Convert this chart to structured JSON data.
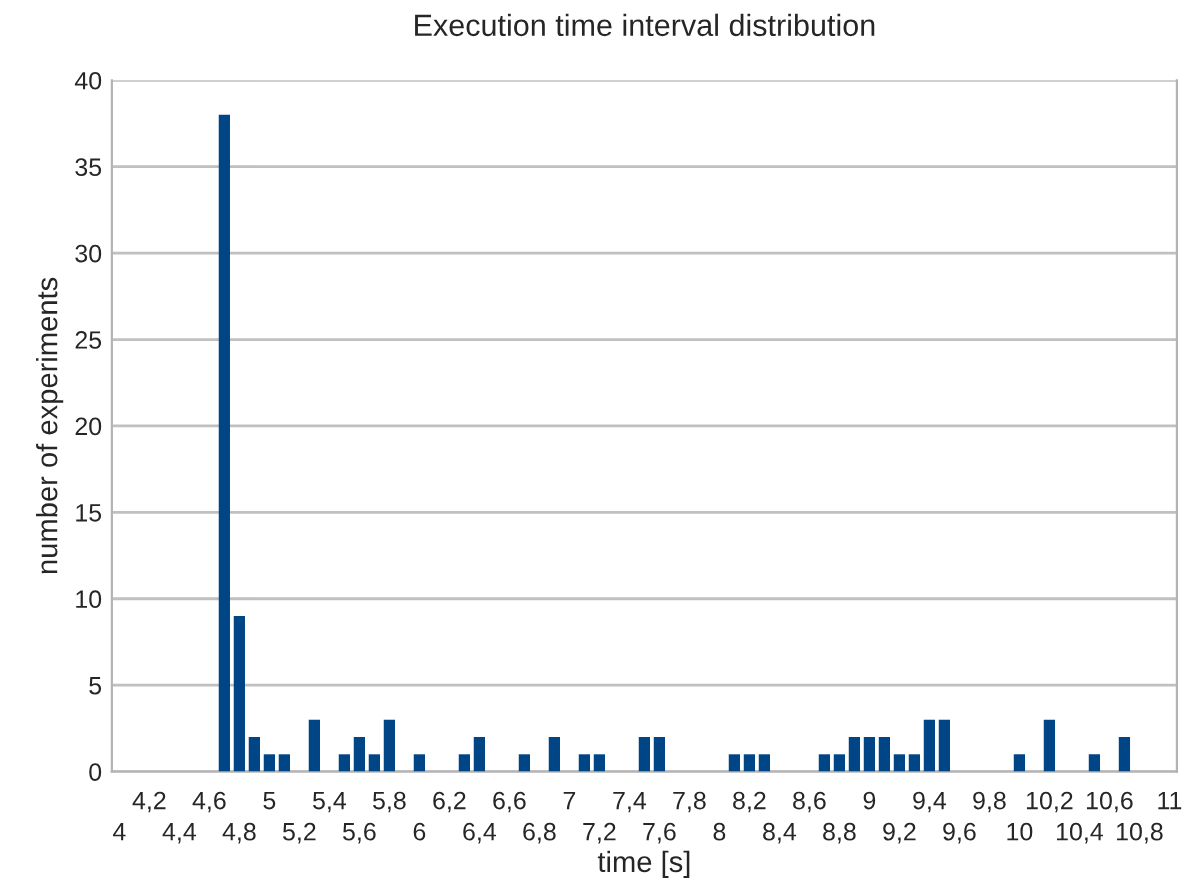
{
  "chart_data": {
    "type": "bar",
    "title": "Execution time interval distribution",
    "xlabel": "time [s]",
    "ylabel": "number of experiments",
    "categories": [
      "4",
      null,
      "4,2",
      null,
      "4,4",
      null,
      "4,6",
      null,
      "4,8",
      null,
      "5",
      null,
      "5,2",
      null,
      "5,4",
      null,
      "5,6",
      null,
      "5,8",
      null,
      "6",
      null,
      "6,2",
      null,
      "6,4",
      null,
      "6,6",
      null,
      "6,8",
      null,
      "7",
      null,
      "7,2",
      null,
      "7,4",
      null,
      "7,6",
      null,
      "7,8",
      null,
      "8",
      null,
      "8,2",
      null,
      "8,4",
      null,
      "8,6",
      null,
      "8,8",
      null,
      "9",
      null,
      "9,2",
      null,
      "9,4",
      null,
      "9,6",
      null,
      "9,8",
      null,
      "10",
      null,
      "10,2",
      null,
      "10,4",
      null,
      "10,6",
      null,
      "10,8",
      null,
      "11"
    ],
    "values": [
      0,
      0,
      0,
      0,
      0,
      0,
      0,
      38,
      9,
      2,
      1,
      1,
      0,
      3,
      0,
      1,
      2,
      1,
      3,
      0,
      1,
      0,
      0,
      1,
      2,
      0,
      0,
      1,
      0,
      2,
      0,
      1,
      1,
      0,
      0,
      2,
      2,
      0,
      0,
      0,
      0,
      1,
      1,
      1,
      0,
      0,
      0,
      1,
      1,
      2,
      2,
      2,
      1,
      1,
      3,
      3,
      0,
      0,
      0,
      0,
      1,
      0,
      3,
      0,
      0,
      1,
      0,
      2,
      0,
      0,
      0
    ],
    "color": "#004586",
    "ylim": [
      0,
      40
    ],
    "yticks": [
      0,
      5,
      10,
      15,
      20,
      25,
      30,
      35,
      40
    ],
    "grid": "y"
  }
}
